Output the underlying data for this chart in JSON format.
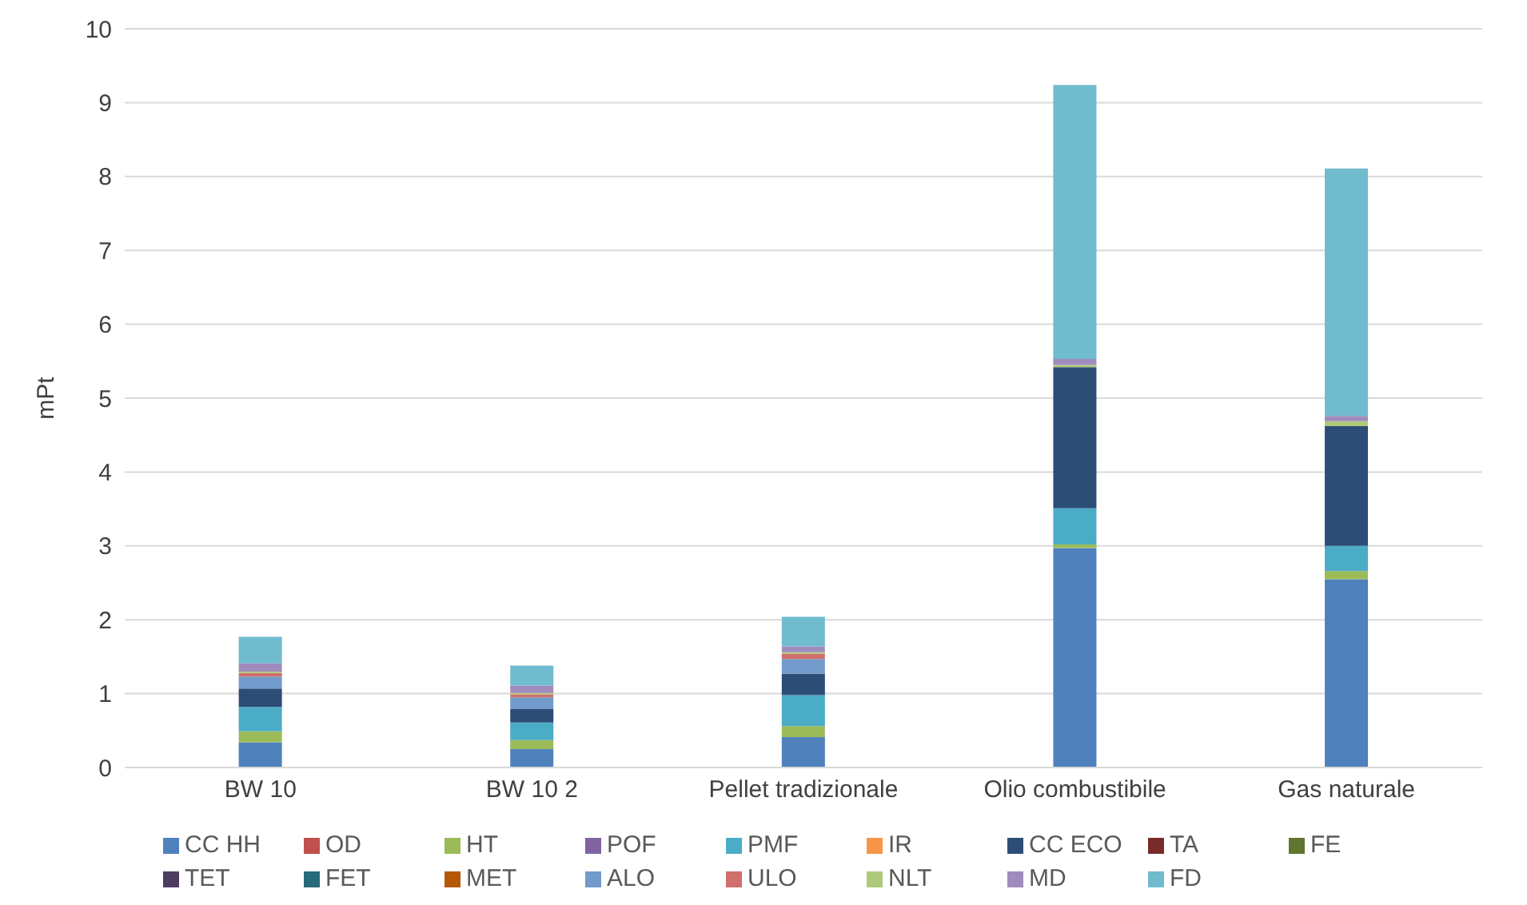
{
  "chart_data": {
    "type": "bar",
    "stacked": true,
    "ylabel": "mPt",
    "categories": [
      "BW 10",
      "BW 10 2",
      "Pellet tradizionale",
      "Olio combustibile",
      "Gas naturale"
    ],
    "ylim": [
      0,
      10
    ],
    "yticks": [
      0,
      1,
      2,
      3,
      4,
      5,
      6,
      7,
      8,
      9,
      10
    ],
    "grid": "y",
    "legend": "bottom",
    "series": [
      {
        "name": "CC HH",
        "color": "#4f81bd",
        "values": [
          0.34,
          0.25,
          0.41,
          2.97,
          2.55
        ]
      },
      {
        "name": "OD",
        "color": "#c0504d",
        "values": [
          0,
          0,
          0,
          0,
          0
        ]
      },
      {
        "name": "HT",
        "color": "#9bbb59",
        "values": [
          0.15,
          0.12,
          0.15,
          0.05,
          0.11
        ]
      },
      {
        "name": "POF",
        "color": "#8064a2",
        "values": [
          0,
          0,
          0,
          0,
          0
        ]
      },
      {
        "name": "PMF",
        "color": "#4bacc6",
        "values": [
          0.33,
          0.24,
          0.42,
          0.49,
          0.34
        ]
      },
      {
        "name": "IR",
        "color": "#f79646",
        "values": [
          0,
          0,
          0,
          0,
          0
        ]
      },
      {
        "name": "CC ECO",
        "color": "#2c4d75",
        "values": [
          0.25,
          0.18,
          0.29,
          1.91,
          1.62
        ]
      },
      {
        "name": "TA",
        "color": "#772c2a",
        "values": [
          0,
          0,
          0,
          0,
          0
        ]
      },
      {
        "name": "FE",
        "color": "#5f7530",
        "values": [
          0,
          0,
          0,
          0,
          0
        ]
      },
      {
        "name": "TET",
        "color": "#4d3b62",
        "values": [
          0,
          0,
          0,
          0,
          0
        ]
      },
      {
        "name": "FET",
        "color": "#276a7c",
        "values": [
          0,
          0,
          0,
          0,
          0
        ]
      },
      {
        "name": "MET",
        "color": "#b65708",
        "values": [
          0,
          0,
          0,
          0,
          0
        ]
      },
      {
        "name": "ALO",
        "color": "#729aca",
        "values": [
          0.16,
          0.16,
          0.2,
          0,
          0
        ]
      },
      {
        "name": "ULO",
        "color": "#d0706d",
        "values": [
          0.05,
          0.04,
          0.07,
          0,
          0
        ]
      },
      {
        "name": "NLT",
        "color": "#afc97a",
        "values": [
          0.02,
          0.02,
          0.02,
          0.03,
          0.07
        ]
      },
      {
        "name": "MD",
        "color": "#a08bbd",
        "values": [
          0.11,
          0.1,
          0.08,
          0.08,
          0.07
        ]
      },
      {
        "name": "FD",
        "color": "#71bbce",
        "values": [
          0.36,
          0.27,
          0.4,
          3.71,
          3.35
        ]
      }
    ]
  }
}
